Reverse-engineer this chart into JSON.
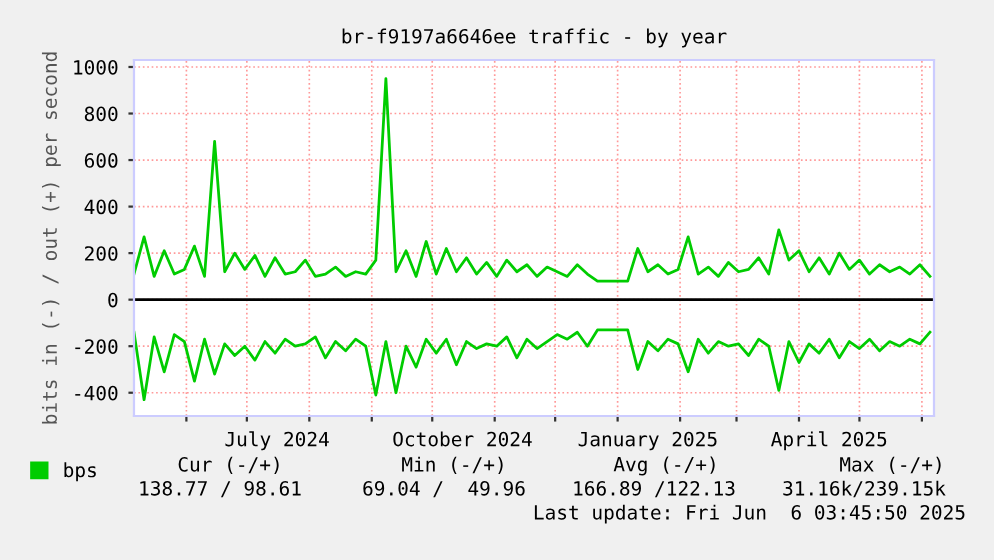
{
  "chart_data": {
    "type": "line",
    "title": "br-f9197a6646ee traffic - by year",
    "ylabel": "bits in (-) / out (+) per second",
    "x": [
      "2024-05-06",
      "2024-05-11",
      "2024-05-16",
      "2024-05-21",
      "2024-05-26",
      "2024-05-31",
      "2024-06-05",
      "2024-06-10",
      "2024-06-15",
      "2024-06-20",
      "2024-06-25",
      "2024-06-30",
      "2024-07-05",
      "2024-07-10",
      "2024-07-15",
      "2024-07-20",
      "2024-07-25",
      "2024-07-30",
      "2024-08-04",
      "2024-08-09",
      "2024-08-14",
      "2024-08-19",
      "2024-08-24",
      "2024-08-29",
      "2024-09-03",
      "2024-09-08",
      "2024-09-13",
      "2024-09-18",
      "2024-09-23",
      "2024-09-28",
      "2024-10-03",
      "2024-10-08",
      "2024-10-13",
      "2024-10-18",
      "2024-10-23",
      "2024-10-28",
      "2024-11-02",
      "2024-11-07",
      "2024-11-12",
      "2024-11-17",
      "2024-11-22",
      "2024-11-27",
      "2024-12-02",
      "2024-12-07",
      "2024-12-12",
      "2024-12-17",
      "2024-12-22",
      "2024-12-27",
      "2025-01-01",
      "2025-01-06",
      "2025-01-11",
      "2025-01-16",
      "2025-01-21",
      "2025-01-26",
      "2025-01-31",
      "2025-02-05",
      "2025-02-10",
      "2025-02-15",
      "2025-02-20",
      "2025-02-25",
      "2025-03-02",
      "2025-03-07",
      "2025-03-12",
      "2025-03-17",
      "2025-03-22",
      "2025-03-27",
      "2025-04-01",
      "2025-04-06",
      "2025-04-11",
      "2025-04-16",
      "2025-04-21",
      "2025-04-26",
      "2025-05-01",
      "2025-05-06",
      "2025-05-11",
      "2025-05-16",
      "2025-05-21",
      "2025-05-26",
      "2025-05-31",
      "2025-06-05"
    ],
    "series": [
      {
        "name": "bps",
        "color": "#00cc00",
        "values": [
          110,
          270,
          100,
          210,
          110,
          130,
          230,
          100,
          680,
          120,
          200,
          130,
          190,
          100,
          180,
          110,
          120,
          170,
          100,
          110,
          140,
          100,
          120,
          110,
          170,
          950,
          120,
          210,
          100,
          250,
          110,
          220,
          120,
          180,
          110,
          160,
          100,
          170,
          120,
          150,
          100,
          140,
          120,
          100,
          150,
          110,
          80,
          80,
          80,
          80,
          220,
          120,
          150,
          110,
          130,
          270,
          110,
          140,
          100,
          160,
          120,
          130,
          180,
          110,
          300,
          170,
          210,
          120,
          180,
          110,
          200,
          130,
          170,
          110,
          150,
          120,
          140,
          110,
          150,
          100
        ]
      },
      {
        "color": "#00cc00",
        "values": [
          -140,
          -430,
          -160,
          -310,
          -150,
          -180,
          -350,
          -170,
          -320,
          -190,
          -240,
          -200,
          -260,
          -180,
          -230,
          -170,
          -200,
          -190,
          -160,
          -250,
          -180,
          -220,
          -170,
          -200,
          -410,
          -180,
          -400,
          -200,
          -290,
          -170,
          -230,
          -170,
          -280,
          -180,
          -210,
          -190,
          -200,
          -160,
          -250,
          -170,
          -210,
          -180,
          -150,
          -170,
          -140,
          -200,
          -130,
          -130,
          -130,
          -130,
          -300,
          -180,
          -220,
          -170,
          -190,
          -310,
          -170,
          -230,
          -180,
          -200,
          -190,
          -240,
          -170,
          -200,
          -390,
          -180,
          -270,
          -190,
          -230,
          -170,
          -250,
          -180,
          -210,
          -170,
          -220,
          -180,
          -200,
          -170,
          -190,
          -140
        ]
      }
    ],
    "xlim": [
      "2024-05-06",
      "2025-06-07"
    ],
    "xticks": [
      {
        "value": "2024-06-01",
        "label": null
      },
      {
        "value": "2024-07-01",
        "label": null
      },
      {
        "value": "2024-07-16",
        "label": "July 2024"
      },
      {
        "value": "2024-08-01",
        "label": null
      },
      {
        "value": "2024-09-01",
        "label": null
      },
      {
        "value": "2024-10-01",
        "label": null
      },
      {
        "value": "2024-10-16",
        "label": "October 2024"
      },
      {
        "value": "2024-11-01",
        "label": null
      },
      {
        "value": "2024-12-01",
        "label": null
      },
      {
        "value": "2025-01-01",
        "label": null
      },
      {
        "value": "2025-01-16",
        "label": "January 2025"
      },
      {
        "value": "2025-02-01",
        "label": null
      },
      {
        "value": "2025-03-01",
        "label": null
      },
      {
        "value": "2025-04-01",
        "label": null
      },
      {
        "value": "2025-04-16",
        "label": "April 2025"
      },
      {
        "value": "2025-05-01",
        "label": null
      },
      {
        "value": "2025-06-01",
        "label": null
      }
    ],
    "ylim": [
      -500,
      1030
    ],
    "yticks": [
      -400,
      -200,
      0,
      200,
      400,
      600,
      800,
      1000
    ],
    "ref_lines": [
      {
        "axis": "y",
        "value": 0,
        "label": null,
        "color": "#000000"
      }
    ],
    "grid": true,
    "legend": "bottom left",
    "annotations": [
      "Cur (-/+)",
      "Min (-/+)",
      "Avg (-/+)",
      "Max (-/+)",
      "138.77 / 98.61",
      "69.04 /  49.96",
      "166.89 /122.13",
      "31.16k/239.15k",
      "Last update: Fri Jun  6 03:45:50 2025"
    ]
  }
}
